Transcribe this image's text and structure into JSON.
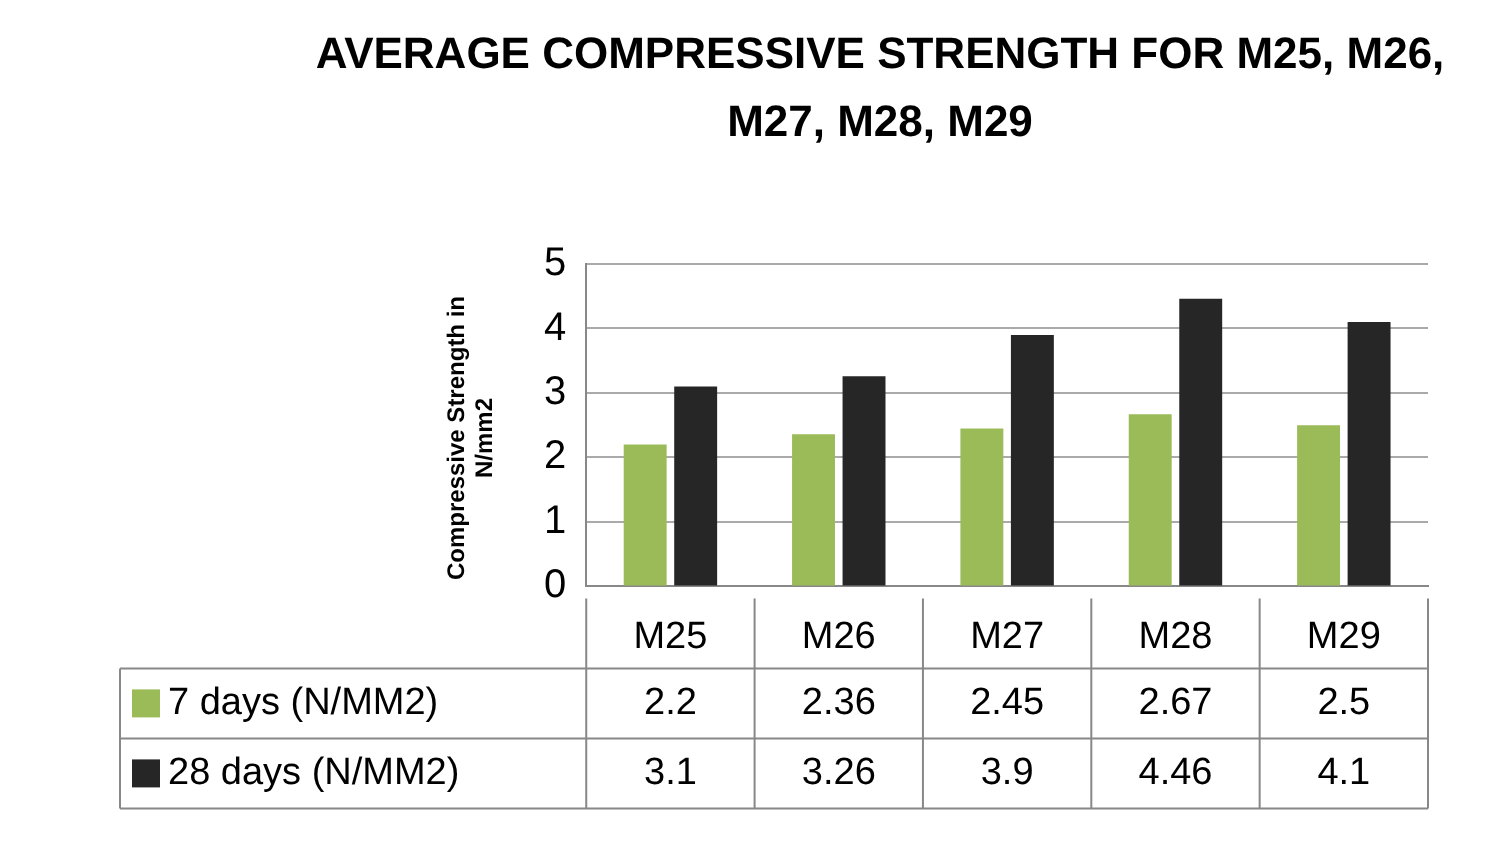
{
  "chart_data": {
    "type": "bar",
    "title": "AVERAGE COMPRESSIVE STRENGTH FOR M25, M26, M27, M28, M29",
    "ylabel": "Compressive Strength in N/mm2",
    "categories": [
      "M25",
      "M26",
      "M27",
      "M28",
      "M29"
    ],
    "series": [
      {
        "name": "7 days (N/MM2)",
        "color": "#9bbb59",
        "values": [
          2.2,
          2.36,
          2.45,
          2.67,
          2.5
        ]
      },
      {
        "name": "28 days (N/MM2)",
        "color": "#262626",
        "values": [
          3.1,
          3.26,
          3.9,
          4.46,
          4.1
        ]
      }
    ],
    "ylim": [
      0,
      5
    ],
    "yticks": [
      0,
      1,
      2,
      3,
      4,
      5
    ],
    "grid": "y",
    "legend": "bottom",
    "data_labels": true
  }
}
